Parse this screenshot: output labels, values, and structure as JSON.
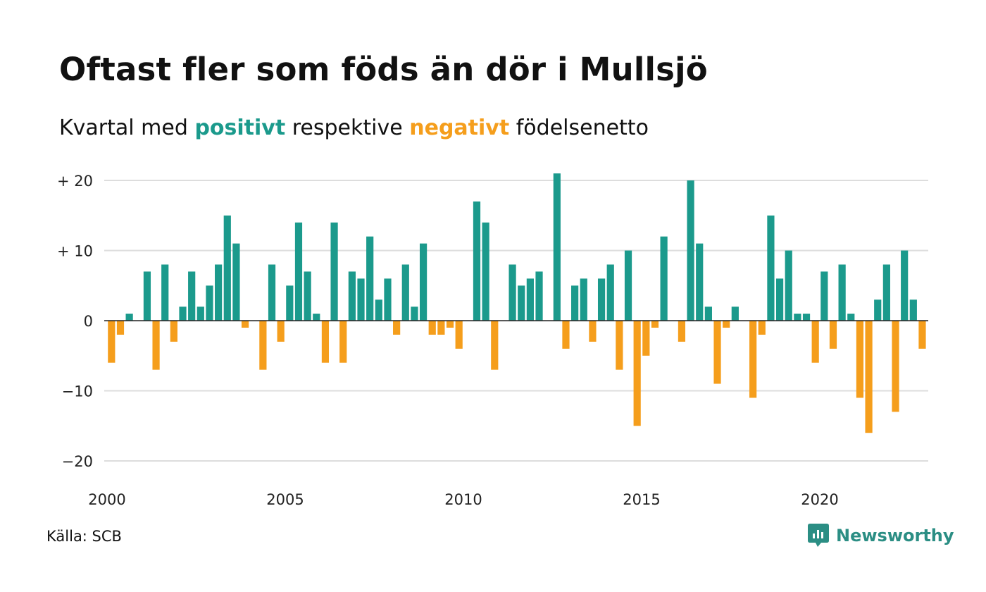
{
  "title": "Oftast fler som föds än dör i Mullsjö",
  "subtitle": {
    "prefix": "Kvartal med",
    "positive_word": "positivt",
    "middle": "respektive",
    "negative_word": "negativt",
    "suffix": "födelsenetto"
  },
  "source": "Källa: SCB",
  "brand": {
    "name": "Newsworthy",
    "icon": "newsworthy-logo-icon"
  },
  "colors": {
    "positive": "#1b9a8c",
    "negative": "#f59e1c",
    "grid": "#dddddd",
    "zero": "#222222"
  },
  "chart_data": {
    "type": "bar",
    "x_start": 2000,
    "periods_per_year": 4,
    "ylim": [
      -22,
      21
    ],
    "yticks": [
      {
        "value": 20,
        "label": "+ 20"
      },
      {
        "value": 10,
        "label": "+ 10"
      },
      {
        "value": 0,
        "label": "0"
      },
      {
        "value": -10,
        "label": "−10"
      },
      {
        "value": -20,
        "label": "−20"
      }
    ],
    "xticks": [
      {
        "value": 2000,
        "label": "2000"
      },
      {
        "value": 2005,
        "label": "2005"
      },
      {
        "value": 2010,
        "label": "2010"
      },
      {
        "value": 2015,
        "label": "2015"
      },
      {
        "value": 2020,
        "label": "2020"
      }
    ],
    "values": [
      -6,
      -2,
      1,
      0,
      7,
      -7,
      8,
      -3,
      2,
      7,
      2,
      5,
      8,
      15,
      11,
      -1,
      0,
      -7,
      8,
      -3,
      5,
      14,
      7,
      1,
      -6,
      14,
      -6,
      7,
      6,
      12,
      3,
      6,
      -2,
      8,
      2,
      11,
      -2,
      -2,
      -1,
      -4,
      0,
      17,
      14,
      -7,
      0,
      8,
      5,
      6,
      7,
      0,
      21,
      -4,
      5,
      6,
      -3,
      6,
      8,
      -7,
      10,
      -15,
      -5,
      -1,
      12,
      0,
      -3,
      20,
      11,
      2,
      -9,
      -1,
      2,
      0,
      -11,
      -2,
      15,
      6,
      10,
      1,
      1,
      -6,
      7,
      -4,
      8,
      1,
      -11,
      -16,
      3,
      8,
      -13,
      10,
      3,
      -4
    ],
    "grid": true,
    "legend": "in subtitle"
  }
}
